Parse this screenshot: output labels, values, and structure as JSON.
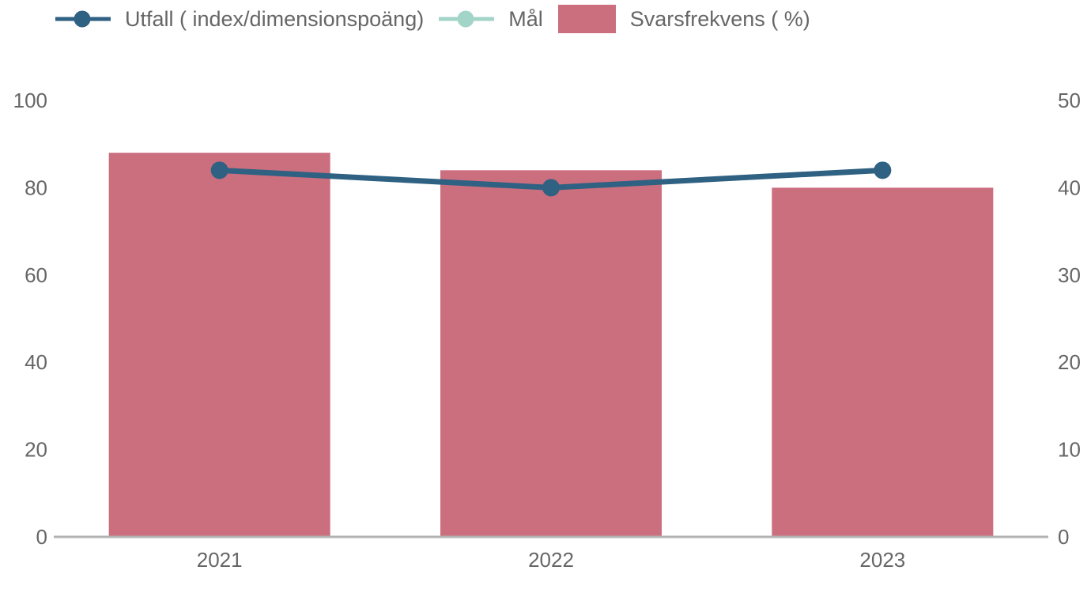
{
  "chart_data": {
    "type": "bar",
    "subtype": "combo-bar-line-dual-axis",
    "title": "",
    "categories": [
      "2021",
      "2022",
      "2023"
    ],
    "series": [
      {
        "name": "Utfall ( index/dimensionspoäng)",
        "render": "line",
        "axis": "left",
        "color": "#2f6183",
        "values": [
          84,
          80,
          84
        ]
      },
      {
        "name": "Mål",
        "render": "line",
        "axis": "left",
        "color": "#a3d4c8",
        "values": []
      },
      {
        "name": "Svarsfrekvens ( %)",
        "render": "bar",
        "axis": "right",
        "color": "#cb6e7e",
        "values": [
          44,
          42,
          40
        ]
      }
    ],
    "left_axis": {
      "ticks": [
        0,
        20,
        40,
        60,
        80,
        100
      ],
      "range": [
        0,
        100
      ]
    },
    "right_axis": {
      "ticks": [
        0,
        10,
        20,
        30,
        40,
        50
      ],
      "range": [
        0,
        50
      ]
    },
    "grid": false,
    "legend_position": "top-left",
    "axis_line_color": "#b2b2b2",
    "tick_label_color": "#666666"
  }
}
